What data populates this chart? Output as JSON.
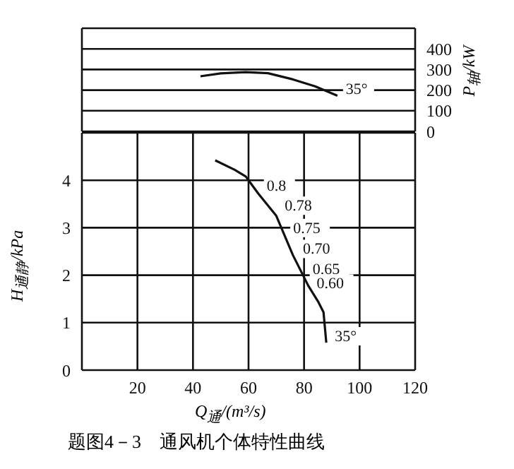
{
  "chart_data": [
    {
      "type": "line",
      "ylabel": "P$_{轴}$/kW",
      "xlim": [
        0,
        120
      ],
      "xticks": [
        20,
        40,
        60,
        80,
        100,
        120
      ],
      "ylim": [
        0,
        500
      ],
      "yticks": [
        0,
        100,
        200,
        300,
        400
      ],
      "tick_labels": "y",
      "grid": true,
      "marker": "none",
      "line_style": "solid",
      "series": [
        {
          "color": "#111111",
          "x": [
            42.7,
            50,
            59,
            67,
            76,
            84,
            92
          ],
          "values": [
            267,
            281,
            287,
            282,
            252,
            218,
            173
          ]
        }
      ],
      "annotations": [
        {
          "text": "35°",
          "x": 92,
          "y": 173
        }
      ]
    },
    {
      "type": "line",
      "xlabel": "Q$_{通}$/(m³/s)",
      "ylabel": "H$_{通静}$/kPa",
      "xlim": [
        0,
        120
      ],
      "xticks": [
        20,
        40,
        60,
        80,
        100,
        120
      ],
      "ylim": [
        0,
        5
      ],
      "yticks": [
        0,
        1,
        2,
        3,
        4
      ],
      "grid": true,
      "marker": "none",
      "line_style": "solid",
      "series": [
        {
          "color": "#111111",
          "x": [
            48,
            55,
            59,
            63.5,
            70,
            76,
            81.5,
            85,
            87,
            88
          ],
          "values": [
            4.42,
            4.22,
            4.08,
            3.72,
            3.25,
            2.42,
            1.78,
            1.45,
            1.22,
            0.58
          ]
        }
      ],
      "annotations": [
        {
          "text": "0.8",
          "x": 63.5,
          "y": 3.75
        },
        {
          "text": "0.78",
          "x": 70,
          "y": 3.33
        },
        {
          "text": "0.75",
          "x": 73,
          "y": 2.86
        },
        {
          "text": "0.70",
          "x": 76.5,
          "y": 2.42
        },
        {
          "text": "0.65",
          "x": 80,
          "y": 2.0
        },
        {
          "text": "0.60",
          "x": 81.5,
          "y": 1.69
        },
        {
          "text": "35°",
          "x": 88,
          "y": 0.58
        },
        "题图4－3　通风机个体特性曲线"
      ]
    }
  ]
}
